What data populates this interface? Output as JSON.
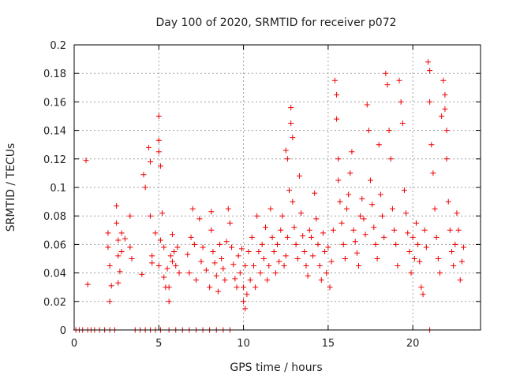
{
  "chart_data": {
    "type": "scatter",
    "title": "Day 100 of 2020, SRMTID for receiver p072",
    "xlabel": "GPS time / hours",
    "ylabel": "SRMTID / TECUs",
    "xlim": [
      0,
      24
    ],
    "ylim": [
      0,
      0.2
    ],
    "x_ticks": [
      "0",
      "5",
      "10",
      "15",
      "20"
    ],
    "y_ticks": [
      "0",
      "0.02",
      "0.04",
      "0.06",
      "0.08",
      "0.1",
      "0.12",
      "0.14",
      "0.16",
      "0.18",
      "0.2"
    ],
    "grid": true,
    "marker": "+",
    "color": "#ee0000",
    "series": [
      {
        "name": "SRMTID",
        "points": [
          [
            0.1,
            0
          ],
          [
            0.3,
            0
          ],
          [
            0.5,
            0
          ],
          [
            0.8,
            0
          ],
          [
            1.0,
            0
          ],
          [
            1.2,
            0
          ],
          [
            1.5,
            0
          ],
          [
            1.8,
            0
          ],
          [
            2.1,
            0
          ],
          [
            2.4,
            0
          ],
          [
            3.6,
            0
          ],
          [
            3.9,
            0
          ],
          [
            4.2,
            0
          ],
          [
            4.5,
            0
          ],
          [
            4.8,
            0
          ],
          [
            5.1,
            0
          ],
          [
            5.6,
            0
          ],
          [
            6.0,
            0
          ],
          [
            6.4,
            0
          ],
          [
            6.8,
            0
          ],
          [
            7.2,
            0
          ],
          [
            7.6,
            0
          ],
          [
            8.0,
            0
          ],
          [
            8.4,
            0
          ],
          [
            8.8,
            0
          ],
          [
            9.2,
            0
          ],
          [
            21.0,
            0
          ],
          [
            0.7,
            0.119
          ],
          [
            0.8,
            0.032
          ],
          [
            2.0,
            0.068
          ],
          [
            2.0,
            0.058
          ],
          [
            2.1,
            0.045
          ],
          [
            2.2,
            0.031
          ],
          [
            2.1,
            0.02
          ],
          [
            2.5,
            0.087
          ],
          [
            2.5,
            0.075
          ],
          [
            2.6,
            0.063
          ],
          [
            2.6,
            0.052
          ],
          [
            2.7,
            0.041
          ],
          [
            2.6,
            0.033
          ],
          [
            2.8,
            0.055
          ],
          [
            2.8,
            0.068
          ],
          [
            3.0,
            0.064
          ],
          [
            3.3,
            0.08
          ],
          [
            3.3,
            0.058
          ],
          [
            3.4,
            0.05
          ],
          [
            4.1,
            0.109
          ],
          [
            4.2,
            0.1
          ],
          [
            4.4,
            0.128
          ],
          [
            4.5,
            0.118
          ],
          [
            4.5,
            0.08
          ],
          [
            4.6,
            0.052
          ],
          [
            4.6,
            0.047
          ],
          [
            4.0,
            0.039
          ],
          [
            4.8,
            0.068
          ],
          [
            5.0,
            0.15
          ],
          [
            5.0,
            0.133
          ],
          [
            5.0,
            0.125
          ],
          [
            5.1,
            0.115
          ],
          [
            5.1,
            0.063
          ],
          [
            5.0,
            0.045
          ],
          [
            5.2,
            0.082
          ],
          [
            5.3,
            0.058
          ],
          [
            5.3,
            0.037
          ],
          [
            5.4,
            0.03
          ],
          [
            5.5,
            0.043
          ],
          [
            5.6,
            0.02
          ],
          [
            5.7,
            0.052
          ],
          [
            5.8,
            0.048
          ],
          [
            5.9,
            0.055
          ],
          [
            6.0,
            0.045
          ],
          [
            6.1,
            0.058
          ],
          [
            6.2,
            0.04
          ],
          [
            5.8,
            0.067
          ],
          [
            5.6,
            0.03
          ],
          [
            6.7,
            0.053
          ],
          [
            6.8,
            0.04
          ],
          [
            6.9,
            0.065
          ],
          [
            7.0,
            0.085
          ],
          [
            7.1,
            0.06
          ],
          [
            7.2,
            0.035
          ],
          [
            7.4,
            0.078
          ],
          [
            7.5,
            0.048
          ],
          [
            7.6,
            0.058
          ],
          [
            7.8,
            0.042
          ],
          [
            8.0,
            0.03
          ],
          [
            8.1,
            0.083
          ],
          [
            8.1,
            0.07
          ],
          [
            8.2,
            0.055
          ],
          [
            8.3,
            0.047
          ],
          [
            8.4,
            0.038
          ],
          [
            8.5,
            0.027
          ],
          [
            8.6,
            0.06
          ],
          [
            8.7,
            0.05
          ],
          [
            8.8,
            0.043
          ],
          [
            8.9,
            0.035
          ],
          [
            9.0,
            0.062
          ],
          [
            9.1,
            0.085
          ],
          [
            9.2,
            0.075
          ],
          [
            9.3,
            0.058
          ],
          [
            9.4,
            0.046
          ],
          [
            9.5,
            0.036
          ],
          [
            9.6,
            0.03
          ],
          [
            9.7,
            0.052
          ],
          [
            9.8,
            0.04
          ],
          [
            9.9,
            0.057
          ],
          [
            10.0,
            0.02
          ],
          [
            10.0,
            0.03
          ],
          [
            10.1,
            0.015
          ],
          [
            10.1,
            0.045
          ],
          [
            10.2,
            0.025
          ],
          [
            10.3,
            0.055
          ],
          [
            10.4,
            0.035
          ],
          [
            10.5,
            0.065
          ],
          [
            10.6,
            0.045
          ],
          [
            10.7,
            0.03
          ],
          [
            10.8,
            0.08
          ],
          [
            10.9,
            0.055
          ],
          [
            11.0,
            0.04
          ],
          [
            11.1,
            0.06
          ],
          [
            11.2,
            0.05
          ],
          [
            11.3,
            0.072
          ],
          [
            11.4,
            0.035
          ],
          [
            11.5,
            0.045
          ],
          [
            11.6,
            0.085
          ],
          [
            11.7,
            0.065
          ],
          [
            11.8,
            0.055
          ],
          [
            11.9,
            0.04
          ],
          [
            12.0,
            0.06
          ],
          [
            12.1,
            0.048
          ],
          [
            12.2,
            0.07
          ],
          [
            12.3,
            0.08
          ],
          [
            12.4,
            0.045
          ],
          [
            12.5,
            0.052
          ],
          [
            12.5,
            0.126
          ],
          [
            12.6,
            0.12
          ],
          [
            12.6,
            0.065
          ],
          [
            12.7,
            0.098
          ],
          [
            12.8,
            0.156
          ],
          [
            12.8,
            0.145
          ],
          [
            12.9,
            0.135
          ],
          [
            12.9,
            0.09
          ],
          [
            13.0,
            0.072
          ],
          [
            13.1,
            0.06
          ],
          [
            13.2,
            0.05
          ],
          [
            13.3,
            0.108
          ],
          [
            13.4,
            0.082
          ],
          [
            13.5,
            0.066
          ],
          [
            13.6,
            0.055
          ],
          [
            13.7,
            0.045
          ],
          [
            13.8,
            0.038
          ],
          [
            13.9,
            0.07
          ],
          [
            14.0,
            0.065
          ],
          [
            14.1,
            0.052
          ],
          [
            14.2,
            0.096
          ],
          [
            14.3,
            0.078
          ],
          [
            14.4,
            0.06
          ],
          [
            14.5,
            0.045
          ],
          [
            14.6,
            0.035
          ],
          [
            14.7,
            0.068
          ],
          [
            14.8,
            0.055
          ],
          [
            14.9,
            0.04
          ],
          [
            15.0,
            0.058
          ],
          [
            15.1,
            0.03
          ],
          [
            15.2,
            0.048
          ],
          [
            15.3,
            0.07
          ],
          [
            15.4,
            0.175
          ],
          [
            15.5,
            0.165
          ],
          [
            15.5,
            0.148
          ],
          [
            15.6,
            0.12
          ],
          [
            15.6,
            0.105
          ],
          [
            15.7,
            0.09
          ],
          [
            15.8,
            0.075
          ],
          [
            15.9,
            0.06
          ],
          [
            16.0,
            0.05
          ],
          [
            16.1,
            0.085
          ],
          [
            16.2,
            0.095
          ],
          [
            16.3,
            0.11
          ],
          [
            16.4,
            0.125
          ],
          [
            16.5,
            0.07
          ],
          [
            16.6,
            0.062
          ],
          [
            16.7,
            0.054
          ],
          [
            16.8,
            0.045
          ],
          [
            16.9,
            0.08
          ],
          [
            17.0,
            0.092
          ],
          [
            17.1,
            0.078
          ],
          [
            17.2,
            0.067
          ],
          [
            17.3,
            0.158
          ],
          [
            17.4,
            0.14
          ],
          [
            17.5,
            0.105
          ],
          [
            17.6,
            0.088
          ],
          [
            17.7,
            0.072
          ],
          [
            17.8,
            0.06
          ],
          [
            17.9,
            0.05
          ],
          [
            18.0,
            0.13
          ],
          [
            18.1,
            0.095
          ],
          [
            18.2,
            0.08
          ],
          [
            18.3,
            0.065
          ],
          [
            18.4,
            0.18
          ],
          [
            18.5,
            0.172
          ],
          [
            18.6,
            0.14
          ],
          [
            18.7,
            0.12
          ],
          [
            18.8,
            0.085
          ],
          [
            18.9,
            0.07
          ],
          [
            19.0,
            0.06
          ],
          [
            19.1,
            0.045
          ],
          [
            19.2,
            0.175
          ],
          [
            19.3,
            0.16
          ],
          [
            19.4,
            0.145
          ],
          [
            19.5,
            0.098
          ],
          [
            19.6,
            0.082
          ],
          [
            19.7,
            0.068
          ],
          [
            19.8,
            0.055
          ],
          [
            19.9,
            0.04
          ],
          [
            20.0,
            0.065
          ],
          [
            20.1,
            0.05
          ],
          [
            20.2,
            0.075
          ],
          [
            20.3,
            0.06
          ],
          [
            20.4,
            0.048
          ],
          [
            20.5,
            0.03
          ],
          [
            20.6,
            0.025
          ],
          [
            20.7,
            0.07
          ],
          [
            20.8,
            0.058
          ],
          [
            20.9,
            0.188
          ],
          [
            21.0,
            0.182
          ],
          [
            21.0,
            0.16
          ],
          [
            21.1,
            0.13
          ],
          [
            21.2,
            0.11
          ],
          [
            21.3,
            0.085
          ],
          [
            21.4,
            0.065
          ],
          [
            21.5,
            0.05
          ],
          [
            21.6,
            0.04
          ],
          [
            21.7,
            0.15
          ],
          [
            21.8,
            0.175
          ],
          [
            21.9,
            0.165
          ],
          [
            21.9,
            0.155
          ],
          [
            22.0,
            0.14
          ],
          [
            22.0,
            0.12
          ],
          [
            22.1,
            0.09
          ],
          [
            22.2,
            0.07
          ],
          [
            22.3,
            0.055
          ],
          [
            22.4,
            0.045
          ],
          [
            22.5,
            0.06
          ],
          [
            22.6,
            0.082
          ],
          [
            22.7,
            0.07
          ],
          [
            22.8,
            0.035
          ],
          [
            22.9,
            0.048
          ],
          [
            23.0,
            0.058
          ]
        ]
      }
    ]
  }
}
